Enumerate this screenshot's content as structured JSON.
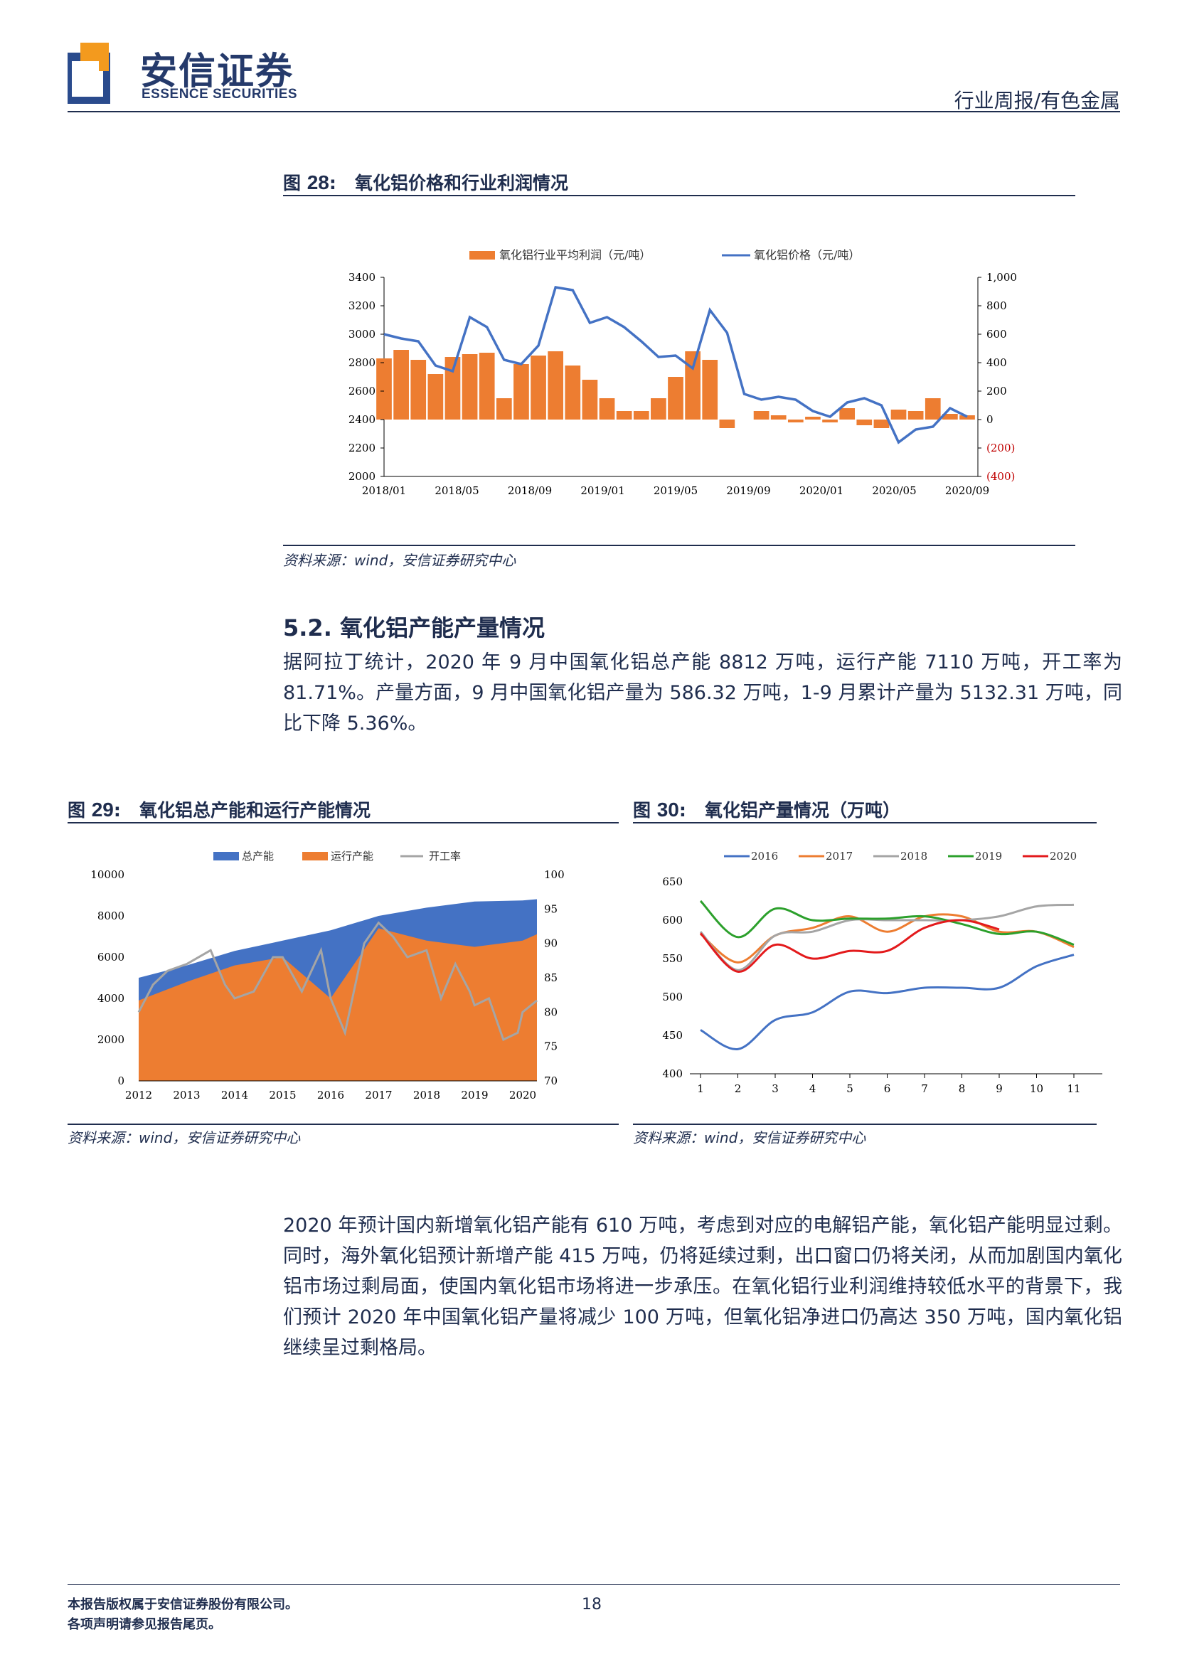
{
  "header": {
    "logo_cn": "安信证券",
    "logo_en": "ESSENCE SECURITIES",
    "report_type": "行业周报/有色金属"
  },
  "fig28": {
    "label": "图",
    "num": "28",
    "title": "氧化铝价格和行业利润情况",
    "source": "资料来源：wind，安信证券研究中心"
  },
  "section": {
    "title": "5.2. 氧化铝产能产量情况",
    "para1": "据阿拉丁统计，2020 年 9 月中国氧化铝总产能 8812 万吨，运行产能 7110 万吨，开工率为 81.71%。产量方面，9 月中国氧化铝产量为 586.32 万吨，1-9 月累计产量为 5132.31 万吨，同比下降 5.36%。",
    "para2": "2020 年预计国内新增氧化铝产能有 610 万吨，考虑到对应的电解铝产能，氧化铝产能明显过剩。同时，海外氧化铝预计新增产能 415 万吨，仍将延续过剩，出口窗口仍将关闭，从而加剧国内氧化铝市场过剩局面，使国内氧化铝市场将进一步承压。在氧化铝行业利润维持较低水平的背景下，我们预计 2020 年中国氧化铝产量将减少 100 万吨，但氧化铝净进口仍高达 350 万吨，国内氧化铝继续呈过剩格局。"
  },
  "fig29": {
    "label": "图",
    "num": "29",
    "title": "氧化铝总产能和运行产能情况",
    "source": "资料来源：wind，安信证券研究中心"
  },
  "fig30": {
    "label": "图",
    "num": "30",
    "title": "氧化铝产量情况（万吨）",
    "source": "资料来源：wind，安信证券研究中心"
  },
  "footer": {
    "line1": "本报告版权属于安信证券股份有限公司。",
    "line2": "各项声明请参见报告尾页。",
    "page": "18"
  },
  "colors": {
    "navy": "#1f2d4e",
    "orange": "#ed7d31",
    "blue": "#4472c4",
    "gray": "#a5a5a5",
    "green": "#2ca02c",
    "red": "#e31a1c"
  },
  "chart_data": [
    {
      "id": "fig28",
      "type": "line+area",
      "legend": [
        "氧化铝行业平均利润（元/吨）",
        "氧化铝价格（元/吨）"
      ],
      "x_ticks": [
        "2018/01",
        "2018/05",
        "2018/09",
        "2019/01",
        "2019/05",
        "2019/09",
        "2020/01",
        "2020/05",
        "2020/09"
      ],
      "y_left_ticks": [
        "3400",
        "3200",
        "3000",
        "2800",
        "2600",
        "2400",
        "2200",
        "2000"
      ],
      "y_right_ticks": [
        "1,000",
        "800",
        "600",
        "400",
        "200",
        "0",
        "(200)",
        "(400)"
      ],
      "ylim_left": [
        2000,
        3400
      ],
      "ylim_right": [
        -400,
        1000
      ],
      "x_range": [
        0,
        34
      ],
      "price_series": [
        [
          0,
          3000
        ],
        [
          1,
          2970
        ],
        [
          2,
          2950
        ],
        [
          3,
          2780
        ],
        [
          4,
          2740
        ],
        [
          5,
          3120
        ],
        [
          6,
          3050
        ],
        [
          7,
          2820
        ],
        [
          8,
          2790
        ],
        [
          9,
          2920
        ],
        [
          10,
          3330
        ],
        [
          11,
          3310
        ],
        [
          12,
          3080
        ],
        [
          13,
          3120
        ],
        [
          14,
          3050
        ],
        [
          15,
          2950
        ],
        [
          16,
          2840
        ],
        [
          17,
          2850
        ],
        [
          18,
          2760
        ],
        [
          19,
          3170
        ],
        [
          20,
          3010
        ],
        [
          21,
          2580
        ],
        [
          22,
          2540
        ],
        [
          23,
          2560
        ],
        [
          24,
          2540
        ],
        [
          25,
          2460
        ],
        [
          26,
          2420
        ],
        [
          27,
          2520
        ],
        [
          28,
          2550
        ],
        [
          29,
          2500
        ],
        [
          30,
          2240
        ],
        [
          31,
          2330
        ],
        [
          32,
          2350
        ],
        [
          33,
          2480
        ],
        [
          34,
          2420
        ]
      ],
      "profit_series": [
        [
          0,
          430
        ],
        [
          1,
          490
        ],
        [
          2,
          420
        ],
        [
          3,
          320
        ],
        [
          4,
          440
        ],
        [
          5,
          460
        ],
        [
          6,
          470
        ],
        [
          7,
          150
        ],
        [
          8,
          390
        ],
        [
          9,
          450
        ],
        [
          10,
          480
        ],
        [
          11,
          380
        ],
        [
          12,
          280
        ],
        [
          13,
          150
        ],
        [
          14,
          60
        ],
        [
          15,
          60
        ],
        [
          16,
          150
        ],
        [
          17,
          300
        ],
        [
          18,
          480
        ],
        [
          19,
          420
        ],
        [
          20,
          -60
        ],
        [
          21,
          0
        ],
        [
          22,
          60
        ],
        [
          23,
          30
        ],
        [
          24,
          -20
        ],
        [
          25,
          20
        ],
        [
          26,
          -20
        ],
        [
          27,
          80
        ],
        [
          28,
          -40
        ],
        [
          29,
          -60
        ],
        [
          30,
          70
        ],
        [
          31,
          60
        ],
        [
          32,
          150
        ],
        [
          33,
          40
        ],
        [
          34,
          30
        ]
      ]
    },
    {
      "id": "fig29",
      "type": "area+line",
      "legend": [
        "总产能",
        "运行产能",
        "开工率"
      ],
      "x_ticks": [
        "2012",
        "2013",
        "2014",
        "2015",
        "2016",
        "2017",
        "2018",
        "2019",
        "2020"
      ],
      "y_left_ticks": [
        "10000",
        "8000",
        "6000",
        "4000",
        "2000",
        "0"
      ],
      "y_right_ticks": [
        "100",
        "95",
        "90",
        "85",
        "80",
        "75",
        "70"
      ],
      "ylim_left": [
        0,
        10000
      ],
      "ylim_right": [
        70,
        100
      ],
      "x_range": [
        2012,
        2020.3
      ],
      "total_capacity": [
        [
          2012,
          5000
        ],
        [
          2013,
          5600
        ],
        [
          2014,
          6300
        ],
        [
          2015,
          6800
        ],
        [
          2016,
          7300
        ],
        [
          2017,
          8000
        ],
        [
          2018,
          8400
        ],
        [
          2019,
          8700
        ],
        [
          2020,
          8750
        ],
        [
          2020.3,
          8812
        ]
      ],
      "running_capacity": [
        [
          2012,
          3900
        ],
        [
          2013,
          4800
        ],
        [
          2014,
          5600
        ],
        [
          2015,
          6000
        ],
        [
          2016,
          4000
        ],
        [
          2017,
          7400
        ],
        [
          2018,
          6800
        ],
        [
          2019,
          6500
        ],
        [
          2020,
          6800
        ],
        [
          2020.3,
          7110
        ]
      ],
      "utilization": [
        [
          2012,
          80
        ],
        [
          2012.3,
          84
        ],
        [
          2012.6,
          86
        ],
        [
          2013,
          87
        ],
        [
          2013.5,
          89
        ],
        [
          2013.8,
          84
        ],
        [
          2014,
          82
        ],
        [
          2014.4,
          83
        ],
        [
          2014.8,
          88
        ],
        [
          2015,
          88
        ],
        [
          2015.4,
          83
        ],
        [
          2015.8,
          89
        ],
        [
          2016,
          82
        ],
        [
          2016.3,
          77
        ],
        [
          2016.7,
          90
        ],
        [
          2017,
          93
        ],
        [
          2017.3,
          91
        ],
        [
          2017.6,
          88
        ],
        [
          2018,
          89
        ],
        [
          2018.3,
          82
        ],
        [
          2018.6,
          87
        ],
        [
          2018.9,
          83
        ],
        [
          2019,
          81
        ],
        [
          2019.3,
          82
        ],
        [
          2019.6,
          76
        ],
        [
          2019.9,
          77
        ],
        [
          2020,
          80
        ],
        [
          2020.3,
          81.7
        ]
      ]
    },
    {
      "id": "fig30",
      "type": "line",
      "legend": [
        "2016",
        "2017",
        "2018",
        "2019",
        "2020"
      ],
      "x_ticks": [
        "1",
        "2",
        "3",
        "4",
        "5",
        "6",
        "7",
        "8",
        "9",
        "10",
        "11"
      ],
      "y_ticks": [
        "650",
        "600",
        "550",
        "500",
        "450",
        "400"
      ],
      "ylim": [
        400,
        650
      ],
      "series": [
        {
          "name": "2016",
          "values": [
            457,
            432,
            470,
            480,
            507,
            505,
            512,
            512,
            512,
            540,
            555
          ]
        },
        {
          "name": "2017",
          "values": [
            582,
            545,
            580,
            590,
            605,
            585,
            605,
            605,
            585,
            585,
            565
          ]
        },
        {
          "name": "2018",
          "values": [
            585,
            535,
            580,
            585,
            600,
            600,
            600,
            600,
            605,
            618,
            620
          ]
        },
        {
          "name": "2019",
          "values": [
            625,
            578,
            615,
            600,
            602,
            602,
            605,
            595,
            582,
            585,
            568
          ]
        },
        {
          "name": "2020",
          "values": [
            583,
            533,
            568,
            550,
            560,
            560,
            590,
            600,
            588
          ]
        }
      ]
    }
  ]
}
